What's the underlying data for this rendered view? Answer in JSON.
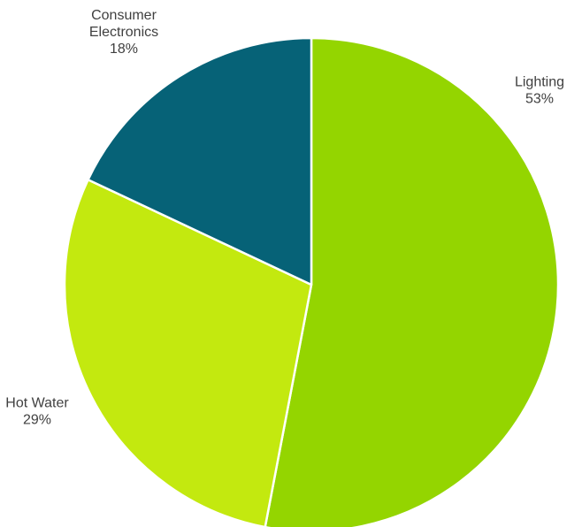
{
  "chart_data": {
    "type": "pie",
    "title": "",
    "slices": [
      {
        "label": "Lighting",
        "value": 53,
        "value_label": "53%",
        "color": "#94D500"
      },
      {
        "label": "Hot Water",
        "value": 29,
        "value_label": "29%",
        "color": "#C3E90F"
      },
      {
        "label": "Consumer Electronics",
        "label_lines": [
          "Consumer",
          "Electronics"
        ],
        "value": 18,
        "value_label": "18%",
        "color": "#066277"
      }
    ],
    "start_angle_deg": 0,
    "direction": "clockwise",
    "legend": "none",
    "data_labels": "category name and percentage, outside slices"
  }
}
